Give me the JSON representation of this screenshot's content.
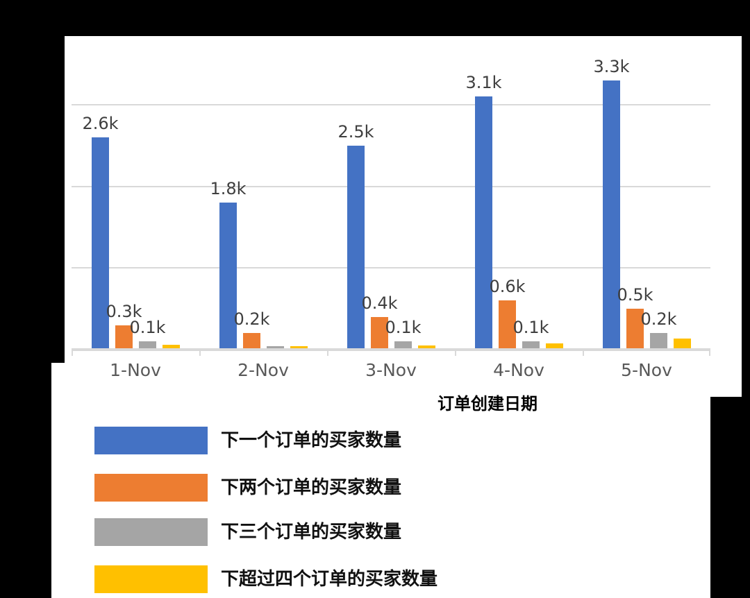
{
  "chart_data": {
    "type": "bar",
    "title": "",
    "categories": [
      "1-Nov",
      "2-Nov",
      "3-Nov",
      "4-Nov",
      "5-Nov"
    ],
    "series": [
      {
        "name": "下一个订单的买家数量",
        "color": "#4472C4",
        "values": [
          2600,
          1800,
          2500,
          3100,
          3300
        ],
        "data_labels": [
          "2.6k",
          "1.8k",
          "2.5k",
          "3.1k",
          "3.3k"
        ]
      },
      {
        "name": "下两个订单的买家数量",
        "color": "#ED7D31",
        "values": [
          300,
          200,
          400,
          600,
          500
        ],
        "data_labels": [
          "0.3k",
          "0.2k",
          "0.4k",
          "0.6k",
          "0.5k"
        ]
      },
      {
        "name": "下三个订单的买家数量",
        "color": "#A5A5A5",
        "values": [
          100,
          40,
          100,
          100,
          200
        ],
        "data_labels": [
          "0.1k",
          "",
          "0.1k",
          "0.1k",
          "0.2k"
        ]
      },
      {
        "name": "下超过四个订单的买家数量",
        "color": "#FFC000",
        "values": [
          60,
          40,
          50,
          80,
          140
        ],
        "data_labels": [
          "",
          "",
          "",
          "",
          ""
        ]
      }
    ],
    "xlabel": "订单创建日期",
    "ylabel": "",
    "ylim": [
      0,
      3500
    ],
    "gridlines_at": [
      1000,
      2000,
      3000
    ],
    "y_axis_labels_visible": false,
    "grid": true,
    "legend_position": "bottom-left"
  },
  "colors": {
    "background": "#000000",
    "panel": "#ffffff",
    "gridline": "#d9d9d9",
    "axis": "#d9d9d9",
    "data_label_text": "#3f3f3f",
    "x_tick_text": "#595959",
    "axis_title_text": "#000000",
    "legend_text": "#111111"
  }
}
